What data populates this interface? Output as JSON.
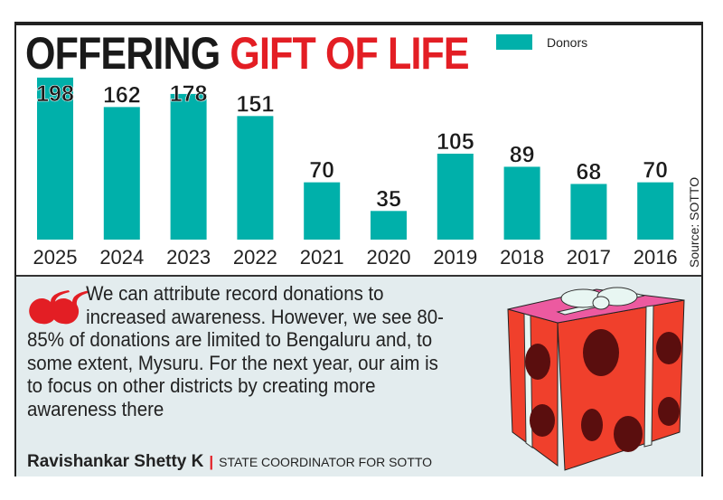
{
  "title": {
    "part1": "OFFERING",
    "part2": "GIFT OF LIFE"
  },
  "chart_data": {
    "type": "bar",
    "categories": [
      "2025",
      "2024",
      "2023",
      "2022",
      "2021",
      "2020",
      "2019",
      "2018",
      "2017",
      "2016"
    ],
    "series": [
      {
        "name": "Donors",
        "values": [
          198,
          162,
          178,
          151,
          70,
          35,
          105,
          89,
          68,
          70
        ]
      }
    ],
    "legend": [
      "Donors"
    ],
    "legend_placement": "top-right",
    "bar_color": "#00b0aa",
    "grid": false,
    "source": "Source: SOTTO"
  },
  "quote": {
    "text_first": "We can attribute record donations to",
    "text_second": "increased awareness. However, we see",
    "text_rest": "80-85% of donations are limited to Bengaluru and, to some extent, Mysuru. For the next year, our aim is to focus on other districts by creating more awareness there",
    "speaker": "Ravishankar Shetty K",
    "role": "STATE COORDINATOR FOR SOTTO",
    "accent_color": "#e31e24"
  }
}
